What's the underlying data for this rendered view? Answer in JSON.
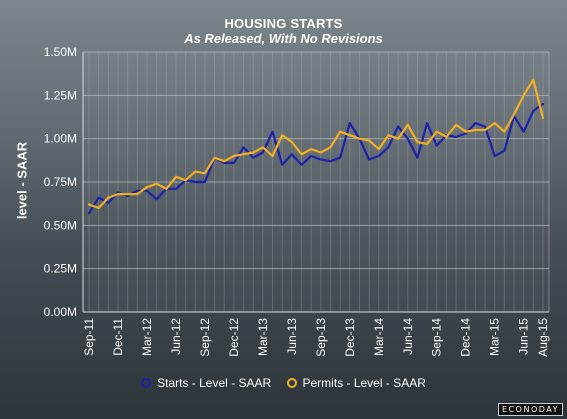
{
  "chart_data": {
    "type": "line",
    "title": "HOUSING STARTS",
    "subtitle": "As Released, With No Revisions",
    "ylabel": "level - SAAR",
    "xlabel": "",
    "ylim": [
      0,
      1.5
    ],
    "yticks": [
      "0.00M",
      "0.25M",
      "0.50M",
      "0.75M",
      "1.00M",
      "1.25M",
      "1.50M"
    ],
    "grid": true,
    "legend_position": "bottom",
    "x": [
      "Sep-11",
      "Oct-11",
      "Nov-11",
      "Dec-11",
      "Jan-12",
      "Feb-12",
      "Mar-12",
      "Apr-12",
      "May-12",
      "Jun-12",
      "Jul-12",
      "Aug-12",
      "Sep-12",
      "Oct-12",
      "Nov-12",
      "Dec-12",
      "Jan-13",
      "Feb-13",
      "Mar-13",
      "Apr-13",
      "May-13",
      "Jun-13",
      "Jul-13",
      "Aug-13",
      "Sep-13",
      "Oct-13",
      "Nov-13",
      "Dec-13",
      "Jan-14",
      "Feb-14",
      "Mar-14",
      "Apr-14",
      "May-14",
      "Jun-14",
      "Jul-14",
      "Aug-14",
      "Sep-14",
      "Oct-14",
      "Nov-14",
      "Dec-14",
      "Jan-15",
      "Feb-15",
      "Mar-15",
      "Apr-15",
      "May-15",
      "Jun-15",
      "Jul-15",
      "Aug-15"
    ],
    "xtick_labels": [
      "Sep-11",
      "Dec-11",
      "Mar-12",
      "Jun-12",
      "Sep-12",
      "Dec-12",
      "Mar-13",
      "Jun-13",
      "Sep-13",
      "Dec-13",
      "Mar-14",
      "Jun-14",
      "Sep-14",
      "Dec-14",
      "Mar-15",
      "Jun-15",
      "Aug-15"
    ],
    "series": [
      {
        "name": "Starts - Level - SAAR",
        "color": "#1e22a8",
        "values": [
          0.57,
          0.66,
          0.63,
          0.69,
          0.67,
          0.7,
          0.7,
          0.65,
          0.71,
          0.71,
          0.76,
          0.75,
          0.75,
          0.89,
          0.86,
          0.86,
          0.95,
          0.89,
          0.92,
          1.04,
          0.85,
          0.91,
          0.85,
          0.9,
          0.88,
          0.87,
          0.89,
          1.09,
          1.0,
          0.88,
          0.9,
          0.95,
          1.07,
          1.0,
          0.89,
          1.09,
          0.96,
          1.02,
          1.01,
          1.03,
          1.09,
          1.07,
          0.9,
          0.93,
          1.13,
          1.04,
          1.16,
          1.2
        ]
      },
      {
        "name": "Permits - Level - SAAR",
        "color": "#f0b020",
        "values": [
          0.62,
          0.6,
          0.66,
          0.68,
          0.68,
          0.68,
          0.72,
          0.74,
          0.71,
          0.78,
          0.76,
          0.81,
          0.8,
          0.89,
          0.87,
          0.9,
          0.91,
          0.92,
          0.95,
          0.9,
          1.02,
          0.98,
          0.91,
          0.94,
          0.92,
          0.95,
          1.04,
          1.02,
          1.0,
          0.99,
          0.94,
          1.02,
          1.0,
          1.08,
          0.98,
          0.97,
          1.04,
          1.01,
          1.08,
          1.04,
          1.05,
          1.05,
          1.09,
          1.04,
          1.14,
          1.25,
          1.34,
          1.12
        ]
      }
    ]
  },
  "brand": "ECONODAY"
}
